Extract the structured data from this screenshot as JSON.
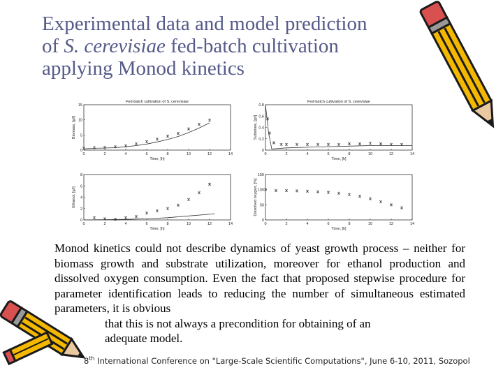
{
  "slide": {
    "title_line1": "Experimental data and model prediction",
    "title_line2_prefix": "of ",
    "title_line2_species": "S. cerevisiae",
    "title_line2_suffix": " fed-batch cultivation",
    "title_line3": "applying Monod kinetics",
    "body_main": "Monod kinetics could not describe dynamics of yeast growth process – neither for biomass growth and substrate utilization, moreover for ethanol production and dissolved oxygen consumption. Even the fact that proposed stepwise procedure for parameter identification leads to reducing the number of simultaneous estimated parameters, it is obvious",
    "body_indent1": "that this is not always a precondition for obtaining of an",
    "body_indent2": "adequate model.",
    "footer_ordinal": "8",
    "footer_sup": "th",
    "footer_rest": " International Conference on \"Large-Scale Scientific Computations\", June 6-10, 2011, Sozopol"
  },
  "colors": {
    "title": "#555a88",
    "pencil_body": "#f5b800",
    "pencil_dark": "#1a1a1a",
    "pencil_tip": "#e8c9a0",
    "marker": "#1a1a1a"
  },
  "icons": {
    "pencil_top_right": "pencil-icon",
    "pencil_bottom_left": "pencil-icon"
  },
  "chart_data": [
    {
      "type": "scatter",
      "title": "Fed-batch cultivation of S. cerevisiae",
      "xlabel": "Time, [h]",
      "ylabel": "Biomass, [g/l]",
      "xlim": [
        0,
        14
      ],
      "ylim": [
        0,
        15
      ],
      "xticks": [
        "0",
        "2",
        "4",
        "6",
        "8",
        "10",
        "12",
        "14"
      ],
      "yticks": [
        "0",
        "5",
        "10",
        "15"
      ],
      "series": [
        {
          "values": [
            [
              0,
              0.6
            ],
            [
              1,
              0.8
            ],
            [
              2,
              0.9
            ],
            [
              3,
              1.1
            ],
            [
              4,
              1.4
            ],
            [
              5,
              2.1
            ],
            [
              6,
              2.8
            ],
            [
              7,
              3.6
            ],
            [
              8,
              4.6
            ],
            [
              9,
              5.5
            ],
            [
              10,
              7.0
            ],
            [
              11,
              8.5
            ],
            [
              12,
              9.9
            ]
          ],
          "style": "markers"
        },
        {
          "values": [
            [
              0,
              0.4
            ],
            [
              1,
              0.6
            ],
            [
              2,
              0.7
            ],
            [
              3,
              0.8
            ],
            [
              4,
              1.1
            ],
            [
              5,
              1.5
            ],
            [
              6,
              2.0
            ],
            [
              7,
              2.7
            ],
            [
              8,
              3.5
            ],
            [
              9,
              4.5
            ],
            [
              10,
              5.8
            ],
            [
              11,
              7.3
            ],
            [
              12,
              9.0
            ]
          ],
          "style": "line"
        }
      ]
    },
    {
      "type": "scatter",
      "title": "Fed-batch cultivation of S. cerevisiae",
      "xlabel": "Time, [h]",
      "ylabel": "Substrate, [g/l]",
      "xlim": [
        0,
        14
      ],
      "ylim": [
        0,
        0.8
      ],
      "xticks": [
        "0",
        "2",
        "4",
        "6",
        "8",
        "10",
        "12",
        "14"
      ],
      "yticks": [
        "0",
        "0.2",
        "0.4",
        "0.6",
        "0.8"
      ],
      "series": [
        {
          "values": [
            [
              0.2,
              0.55
            ],
            [
              0.4,
              0.3
            ],
            [
              0.8,
              0.13
            ],
            [
              1.5,
              0.1
            ],
            [
              2,
              0.1
            ],
            [
              3,
              0.1
            ],
            [
              4,
              0.1
            ],
            [
              5,
              0.1
            ],
            [
              6,
              0.1
            ],
            [
              7,
              0.1
            ],
            [
              8,
              0.11
            ],
            [
              9,
              0.11
            ],
            [
              10,
              0.12
            ],
            [
              11,
              0.11
            ],
            [
              12,
              0.1
            ],
            [
              13,
              0.1
            ]
          ],
          "style": "markers"
        },
        {
          "values": [
            [
              0,
              0.8
            ],
            [
              0.3,
              0.3
            ],
            [
              0.6,
              0.02
            ],
            [
              2,
              0.04
            ],
            [
              4,
              0.05
            ],
            [
              6,
              0.06
            ],
            [
              8,
              0.07
            ],
            [
              10,
              0.08
            ],
            [
              12,
              0.08
            ],
            [
              14,
              0.08
            ]
          ],
          "style": "line"
        }
      ]
    },
    {
      "type": "scatter",
      "xlabel": "Time, [h]",
      "ylabel": "Ethanol, [g/l]",
      "xlim": [
        0,
        14
      ],
      "ylim": [
        0,
        8
      ],
      "xticks": [
        "0",
        "2",
        "4",
        "6",
        "8",
        "10",
        "12",
        "14"
      ],
      "yticks": [
        "0",
        "2",
        "4",
        "6",
        "8"
      ],
      "series": [
        {
          "values": [
            [
              1,
              0.4
            ],
            [
              2,
              0.2
            ],
            [
              3,
              0.1
            ],
            [
              4,
              0.4
            ],
            [
              5,
              0.6
            ],
            [
              6,
              1.2
            ],
            [
              7,
              1.6
            ],
            [
              8,
              2.0
            ],
            [
              9,
              2.6
            ],
            [
              10,
              3.6
            ],
            [
              11,
              4.8
            ],
            [
              12,
              6.3
            ]
          ],
          "style": "markers"
        },
        {
          "values": [
            [
              0,
              0.0
            ],
            [
              2,
              0.05
            ],
            [
              4,
              0.1
            ],
            [
              6,
              0.2
            ],
            [
              8,
              0.4
            ],
            [
              10,
              0.7
            ],
            [
              12,
              1.0
            ],
            [
              12.5,
              1.1
            ]
          ],
          "style": "line"
        }
      ]
    },
    {
      "type": "scatter",
      "xlabel": "Time, [h]",
      "ylabel": "Dissolved oxygen, [%]",
      "xlim": [
        0,
        14
      ],
      "ylim": [
        0,
        150
      ],
      "xticks": [
        "0",
        "2",
        "4",
        "6",
        "8",
        "10",
        "12",
        "14"
      ],
      "yticks": [
        "0",
        "50",
        "100",
        "150"
      ],
      "series": [
        {
          "values": [
            [
              0,
              100
            ],
            [
              1,
              97
            ],
            [
              2,
              97
            ],
            [
              3,
              96
            ],
            [
              4,
              95
            ],
            [
              5,
              93
            ],
            [
              6,
              91
            ],
            [
              7,
              88
            ],
            [
              8,
              84
            ],
            [
              9,
              78
            ],
            [
              10,
              70
            ],
            [
              11,
              60
            ],
            [
              12,
              50
            ],
            [
              13,
              40
            ]
          ],
          "style": "markers"
        }
      ]
    }
  ]
}
